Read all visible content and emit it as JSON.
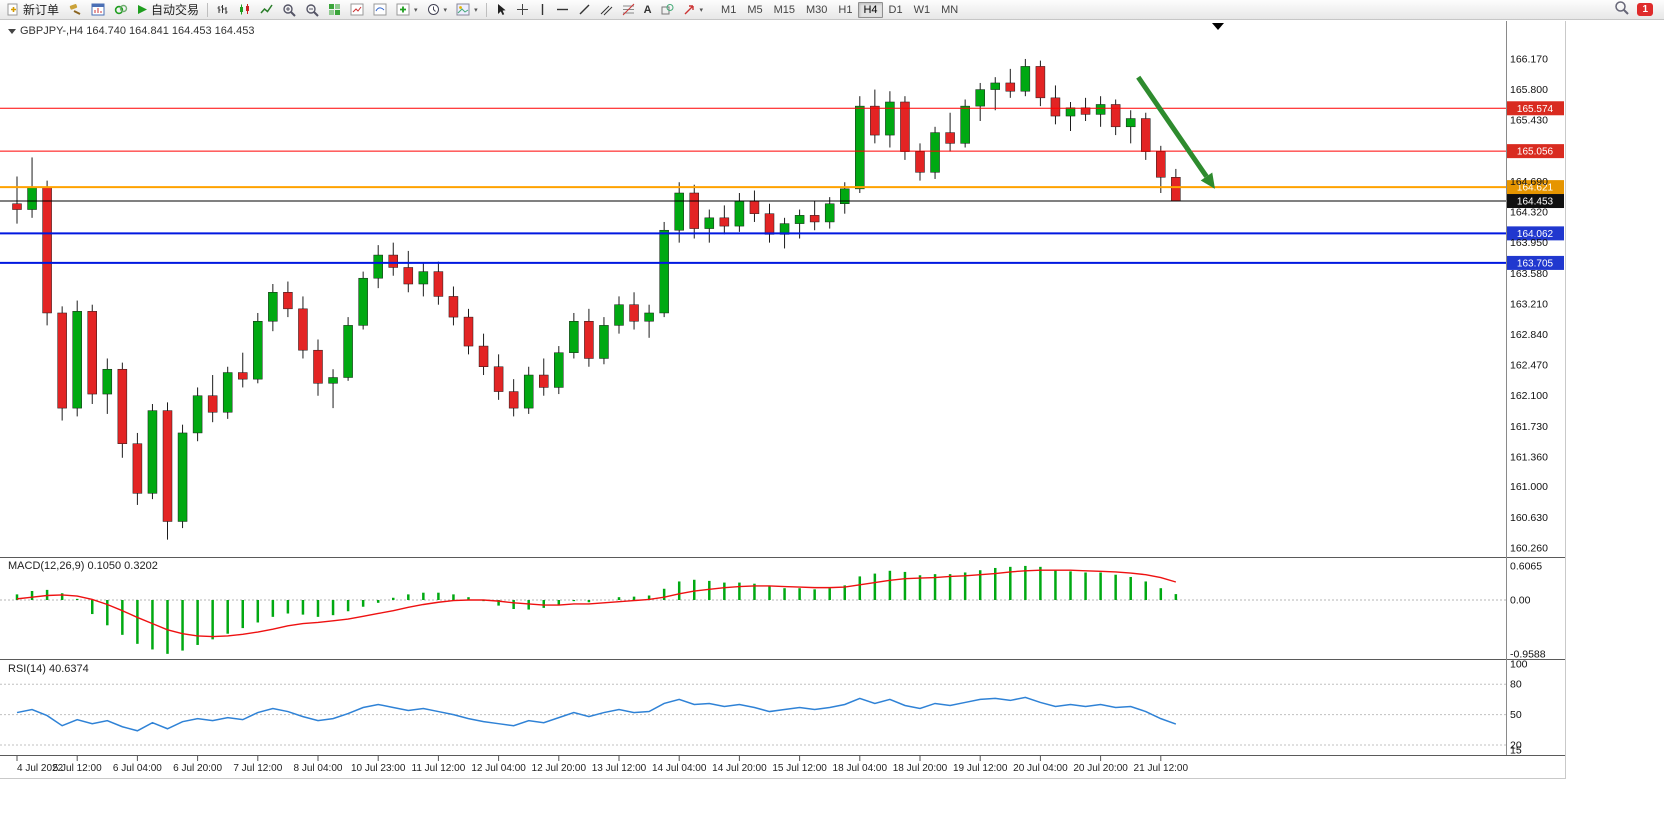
{
  "toolbar": {
    "new_order_label": "新订单",
    "auto_trading_label": "自动交易",
    "timeframes": [
      "M1",
      "M5",
      "M15",
      "M30",
      "H1",
      "H4",
      "D1",
      "W1",
      "MN"
    ],
    "active_timeframe": "H4",
    "notification_count": "1"
  },
  "icon_names": [
    "new-order-icon",
    "gavel-icon",
    "chart-window-icon",
    "market-watch-icon",
    "autotrade-play-icon",
    "bars-chart-icon",
    "candlestick-chart-icon",
    "line-chart-icon",
    "zoom-in-icon",
    "zoom-out-icon",
    "tile-windows-icon",
    "indicators-icon",
    "add-indicator-icon",
    "periods-clock-icon",
    "chart-template-icon",
    "cursor-icon",
    "crosshair-icon",
    "vertical-line-icon",
    "horizontal-line-icon",
    "trendline-icon",
    "channel-icon",
    "fibonacci-icon",
    "text-tool-icon",
    "arrows-tool-icon",
    "search-icon",
    "notification-badge",
    "chart-shift-marker",
    "collapse-icon"
  ],
  "chart": {
    "title": "GBPJPY-,H4 164.740 164.841 164.453 164.453",
    "symbol": "GBPJPY-",
    "period": "H4",
    "ohlc": {
      "open": "164.740",
      "high": "164.841",
      "low": "164.453",
      "close": "164.453"
    }
  },
  "colors": {
    "bull": "#00a912",
    "bear": "#e32424",
    "wick": "#1c1c1c",
    "red_line": "#ff0000",
    "orange_line": "#ffa200",
    "blue_line": "#0018e0",
    "black_line": "#000000",
    "macd_bar": "#00a912",
    "macd_signal": "#ee1111",
    "rsi_line": "#2f82d6",
    "arrow": "#2e8b2e",
    "badge_red": "#d92b20",
    "badge_orange": "#e69500",
    "badge_blue": "#2038cf",
    "badge_black": "#101010"
  },
  "chart_data": {
    "type": "candlestick",
    "symbol": "GBPJPY-",
    "timeframe": "H4",
    "price_range": [
      160.16,
      166.52
    ],
    "candles": [
      [
        164.42,
        164.75,
        164.18,
        164.35
      ],
      [
        164.35,
        164.98,
        164.25,
        164.62
      ],
      [
        164.62,
        164.7,
        162.95,
        163.1
      ],
      [
        163.1,
        163.18,
        161.8,
        161.95
      ],
      [
        161.95,
        163.25,
        161.85,
        163.12
      ],
      [
        163.12,
        163.2,
        162.0,
        162.12
      ],
      [
        162.12,
        162.55,
        161.88,
        162.42
      ],
      [
        162.42,
        162.5,
        161.35,
        161.52
      ],
      [
        161.52,
        161.65,
        160.78,
        160.92
      ],
      [
        160.92,
        162.0,
        160.85,
        161.92
      ],
      [
        161.92,
        162.02,
        160.36,
        160.58
      ],
      [
        160.58,
        161.75,
        160.5,
        161.65
      ],
      [
        161.65,
        162.2,
        161.55,
        162.1
      ],
      [
        162.1,
        162.35,
        161.78,
        161.9
      ],
      [
        161.9,
        162.45,
        161.82,
        162.38
      ],
      [
        162.38,
        162.62,
        162.2,
        162.3
      ],
      [
        162.3,
        163.1,
        162.25,
        163.0
      ],
      [
        163.0,
        163.45,
        162.88,
        163.35
      ],
      [
        163.35,
        163.48,
        163.05,
        163.15
      ],
      [
        163.15,
        163.3,
        162.55,
        162.65
      ],
      [
        162.65,
        162.78,
        162.1,
        162.25
      ],
      [
        162.25,
        162.42,
        161.95,
        162.32
      ],
      [
        162.32,
        163.05,
        162.28,
        162.95
      ],
      [
        162.95,
        163.6,
        162.9,
        163.52
      ],
      [
        163.52,
        163.92,
        163.4,
        163.8
      ],
      [
        163.8,
        163.95,
        163.55,
        163.65
      ],
      [
        163.65,
        163.85,
        163.35,
        163.45
      ],
      [
        163.45,
        163.7,
        163.3,
        163.6
      ],
      [
        163.6,
        163.72,
        163.2,
        163.3
      ],
      [
        163.3,
        163.42,
        162.95,
        163.05
      ],
      [
        163.05,
        163.15,
        162.6,
        162.7
      ],
      [
        162.7,
        162.85,
        162.35,
        162.45
      ],
      [
        162.45,
        162.6,
        162.05,
        162.15
      ],
      [
        162.15,
        162.3,
        161.85,
        161.95
      ],
      [
        161.95,
        162.45,
        161.88,
        162.35
      ],
      [
        162.35,
        162.55,
        162.1,
        162.2
      ],
      [
        162.2,
        162.7,
        162.12,
        162.62
      ],
      [
        162.62,
        163.1,
        162.55,
        163.0
      ],
      [
        163.0,
        163.15,
        162.45,
        162.55
      ],
      [
        162.55,
        163.05,
        162.48,
        162.95
      ],
      [
        162.95,
        163.3,
        162.85,
        163.2
      ],
      [
        163.2,
        163.35,
        162.9,
        163.0
      ],
      [
        163.0,
        163.2,
        162.8,
        163.1
      ],
      [
        163.1,
        164.2,
        163.05,
        164.1
      ],
      [
        164.1,
        164.68,
        163.95,
        164.55
      ],
      [
        164.55,
        164.65,
        164.0,
        164.12
      ],
      [
        164.12,
        164.35,
        163.95,
        164.25
      ],
      [
        164.25,
        164.4,
        164.05,
        164.15
      ],
      [
        164.15,
        164.55,
        164.08,
        164.45
      ],
      [
        164.45,
        164.58,
        164.2,
        164.3
      ],
      [
        164.3,
        164.42,
        163.95,
        164.05
      ],
      [
        164.05,
        164.25,
        163.88,
        164.18
      ],
      [
        164.18,
        164.35,
        164.0,
        164.28
      ],
      [
        164.28,
        164.45,
        164.1,
        164.2
      ],
      [
        164.2,
        164.5,
        164.12,
        164.42
      ],
      [
        164.42,
        164.68,
        164.3,
        164.6
      ],
      [
        164.6,
        165.72,
        164.55,
        165.6
      ],
      [
        165.6,
        165.8,
        165.15,
        165.25
      ],
      [
        165.25,
        165.78,
        165.1,
        165.65
      ],
      [
        165.65,
        165.72,
        164.95,
        165.05
      ],
      [
        165.05,
        165.15,
        164.7,
        164.8
      ],
      [
        164.8,
        165.35,
        164.72,
        165.28
      ],
      [
        165.28,
        165.52,
        165.05,
        165.15
      ],
      [
        165.15,
        165.68,
        165.1,
        165.6
      ],
      [
        165.6,
        165.88,
        165.42,
        165.8
      ],
      [
        165.8,
        165.95,
        165.55,
        165.88
      ],
      [
        165.88,
        166.05,
        165.7,
        165.78
      ],
      [
        165.78,
        166.17,
        165.72,
        166.08
      ],
      [
        166.08,
        166.15,
        165.6,
        165.7
      ],
      [
        165.7,
        165.85,
        165.38,
        165.48
      ],
      [
        165.48,
        165.65,
        165.3,
        165.58
      ],
      [
        165.58,
        165.7,
        165.42,
        165.5
      ],
      [
        165.5,
        165.72,
        165.35,
        165.62
      ],
      [
        165.62,
        165.68,
        165.25,
        165.35
      ],
      [
        165.35,
        165.55,
        165.15,
        165.45
      ],
      [
        165.45,
        165.52,
        164.95,
        165.05
      ],
      [
        165.05,
        165.12,
        164.55,
        164.74
      ],
      [
        164.74,
        164.841,
        164.453,
        164.453
      ]
    ],
    "time_labels": [
      "4 Jul 2022",
      "5 Jul 12:00",
      "6 Jul 04:00",
      "6 Jul 20:00",
      "7 Jul 12:00",
      "8 Jul 04:00",
      "10 Jul 23:00",
      "11 Jul 12:00",
      "12 Jul 04:00",
      "12 Jul 20:00",
      "13 Jul 12:00",
      "14 Jul 04:00",
      "14 Jul 20:00",
      "15 Jul 12:00",
      "18 Jul 04:00",
      "18 Jul 20:00",
      "19 Jul 12:00",
      "20 Jul 04:00",
      "20 Jul 20:00",
      "21 Jul 12:00"
    ],
    "label_every": 4,
    "price_axis_labels": [
      "166.170",
      "165.800",
      "165.430",
      "164.690",
      "164.320",
      "163.950",
      "163.580",
      "163.210",
      "162.840",
      "162.470",
      "162.100",
      "161.730",
      "161.360",
      "161.000",
      "160.630",
      "160.260"
    ],
    "h_lines": [
      {
        "price": 165.574,
        "label": "165.574",
        "color": "red_line",
        "badge": "badge_red",
        "width": 1
      },
      {
        "price": 165.056,
        "label": "165.056",
        "color": "red_line",
        "badge": "badge_red",
        "width": 1
      },
      {
        "price": 164.621,
        "label": "164.621",
        "color": "orange_line",
        "badge": "badge_orange",
        "width": 2
      },
      {
        "price": 164.453,
        "label": "164.453",
        "color": "black_line",
        "badge": "badge_black",
        "width": 1
      },
      {
        "price": 164.062,
        "label": "164.062",
        "color": "blue_line",
        "badge": "badge_blue",
        "width": 2
      },
      {
        "price": 163.705,
        "label": "163.705",
        "color": "blue_line",
        "badge": "badge_blue",
        "width": 2
      }
    ],
    "arrow": {
      "from_index": 74.5,
      "from_price": 165.95,
      "to_index": 79.6,
      "to_price": 164.6
    },
    "macd": {
      "label": "MACD(12,26,9) 0.1050 0.3202",
      "range": [
        -0.9588,
        0.6065
      ],
      "axis_labels": [
        {
          "v": 0.6065,
          "t": "0.6065"
        },
        {
          "v": 0,
          "t": "0.00"
        },
        {
          "v": -0.9588,
          "t": "-0.9588"
        }
      ],
      "histogram": [
        0.1,
        0.16,
        0.18,
        0.12,
        0.02,
        -0.25,
        -0.45,
        -0.62,
        -0.78,
        -0.88,
        -0.958,
        -0.9,
        -0.8,
        -0.7,
        -0.6,
        -0.5,
        -0.4,
        -0.3,
        -0.24,
        -0.26,
        -0.3,
        -0.27,
        -0.2,
        -0.12,
        -0.05,
        0.04,
        0.1,
        0.13,
        0.13,
        0.1,
        0.05,
        -0.02,
        -0.1,
        -0.16,
        -0.17,
        -0.14,
        -0.08,
        -0.02,
        -0.04,
        0.0,
        0.05,
        0.06,
        0.08,
        0.2,
        0.33,
        0.36,
        0.34,
        0.31,
        0.31,
        0.29,
        0.24,
        0.21,
        0.21,
        0.19,
        0.21,
        0.26,
        0.42,
        0.47,
        0.52,
        0.5,
        0.44,
        0.46,
        0.46,
        0.49,
        0.53,
        0.57,
        0.59,
        0.6065,
        0.59,
        0.54,
        0.51,
        0.49,
        0.49,
        0.45,
        0.41,
        0.33,
        0.21,
        0.105
      ],
      "signal": [
        0.02,
        0.05,
        0.08,
        0.09,
        0.07,
        0.01,
        -0.08,
        -0.19,
        -0.31,
        -0.42,
        -0.53,
        -0.6,
        -0.64,
        -0.65,
        -0.64,
        -0.61,
        -0.57,
        -0.52,
        -0.46,
        -0.42,
        -0.4,
        -0.37,
        -0.34,
        -0.29,
        -0.24,
        -0.19,
        -0.13,
        -0.08,
        -0.04,
        -0.01,
        0.0,
        0.0,
        -0.02,
        -0.05,
        -0.07,
        -0.09,
        -0.09,
        -0.07,
        -0.07,
        -0.05,
        -0.03,
        -0.01,
        0.01,
        0.05,
        0.11,
        0.16,
        0.19,
        0.22,
        0.24,
        0.25,
        0.25,
        0.24,
        0.23,
        0.22,
        0.22,
        0.23,
        0.27,
        0.31,
        0.35,
        0.38,
        0.39,
        0.4,
        0.42,
        0.43,
        0.45,
        0.47,
        0.5,
        0.52,
        0.53,
        0.53,
        0.53,
        0.52,
        0.51,
        0.5,
        0.48,
        0.45,
        0.4,
        0.3202
      ]
    },
    "rsi": {
      "label": "RSI(14) 40.6374",
      "range": [
        15,
        100
      ],
      "levels": [
        80,
        50,
        20
      ],
      "axis_labels": [
        {
          "v": 100,
          "t": "100"
        },
        {
          "v": 80,
          "t": "80"
        },
        {
          "v": 50,
          "t": "50"
        },
        {
          "v": 20,
          "t": "20"
        },
        {
          "v": 15,
          "t": "15"
        }
      ],
      "values": [
        52,
        55,
        49,
        39,
        45,
        41,
        44,
        38,
        34,
        42,
        36,
        43,
        46,
        44,
        47,
        45,
        52,
        56,
        53,
        48,
        44,
        46,
        51,
        57,
        60,
        57,
        54,
        56,
        53,
        50,
        46,
        43,
        41,
        39,
        44,
        42,
        47,
        52,
        48,
        52,
        55,
        52,
        53,
        61,
        65,
        60,
        61,
        58,
        60,
        57,
        53,
        55,
        57,
        55,
        57,
        60,
        66,
        61,
        65,
        59,
        56,
        61,
        59,
        62,
        65,
        66,
        64,
        67,
        62,
        58,
        60,
        58,
        60,
        57,
        58,
        53,
        46,
        40.64
      ]
    }
  }
}
